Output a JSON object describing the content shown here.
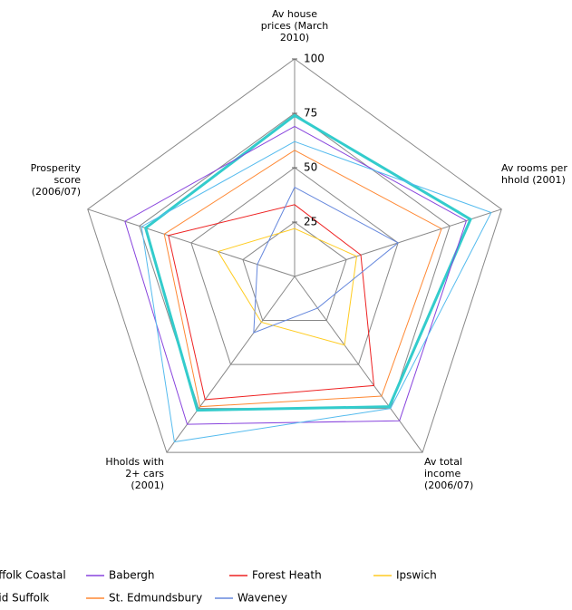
{
  "chart_data": {
    "type": "radar",
    "categories": [
      "Av house prices (March 2010)",
      "Av rooms per hhold (2001)",
      "Av total income (2006/07)",
      "Hholds with 2+ cars (2001)",
      "Prosperity score (2006/07)"
    ],
    "ylim": [
      0,
      100
    ],
    "yticks": [
      25,
      50,
      75,
      100
    ],
    "grid": true,
    "series": [
      {
        "name": "Suffolk Coastal",
        "color": "#33cccc",
        "width": 3,
        "values": [
          74,
          85,
          74,
          76,
          72
        ]
      },
      {
        "name": "Babergh",
        "color": "#8844dd",
        "width": 1,
        "values": [
          69,
          83,
          82,
          84,
          82
        ]
      },
      {
        "name": "Forest Heath",
        "color": "#ee2222",
        "width": 1,
        "values": [
          33,
          32,
          62,
          70,
          61
        ]
      },
      {
        "name": "Ipswich",
        "color": "#ffcc22",
        "width": 1,
        "values": [
          22,
          30,
          39,
          26,
          37
        ]
      },
      {
        "name": "Mid Suffolk",
        "color": "#55bbee",
        "width": 1,
        "values": [
          62,
          95,
          75,
          94,
          74
        ]
      },
      {
        "name": "St. Edmundsbury",
        "color": "#ff8833",
        "width": 1,
        "values": [
          58,
          71,
          68,
          74,
          63
        ]
      },
      {
        "name": "Waveney",
        "color": "#6688dd",
        "width": 1,
        "values": [
          41,
          50,
          18,
          32,
          18
        ]
      }
    ]
  }
}
